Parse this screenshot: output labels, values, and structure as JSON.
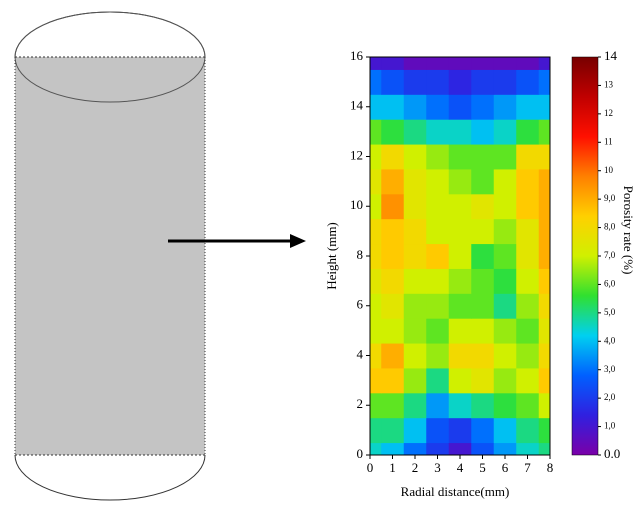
{
  "chart_data": {
    "type": "contour",
    "xlabel": "Radial distance(mm)",
    "ylabel": "Height (mm)",
    "colorbar_label": "Porosity rate (%)",
    "x": [
      0,
      1,
      2,
      3,
      4,
      5,
      6,
      7,
      8
    ],
    "y": [
      0,
      1,
      2,
      3,
      4,
      5,
      6,
      7,
      8,
      9,
      10,
      11,
      12,
      13,
      14,
      15,
      16
    ],
    "z": [
      [
        4.5,
        4,
        3,
        2,
        1,
        2.5,
        3.5,
        4.5,
        5
      ],
      [
        5,
        5,
        4,
        2.5,
        2,
        3,
        4,
        5,
        5.5
      ],
      [
        6,
        6,
        5,
        3.5,
        4.5,
        5,
        5.5,
        6,
        7
      ],
      [
        8.5,
        8.5,
        6.5,
        5,
        7,
        7.5,
        6.5,
        7,
        8.5
      ],
      [
        8,
        9,
        7,
        6.5,
        8,
        8,
        7,
        6.5,
        8
      ],
      [
        7,
        7,
        6.5,
        6,
        7,
        7,
        6.5,
        6,
        7.5
      ],
      [
        7,
        7.5,
        6.5,
        6.5,
        6,
        6,
        5,
        6.5,
        8
      ],
      [
        7.5,
        8,
        7,
        7,
        6.5,
        6,
        5.5,
        7,
        8.5
      ],
      [
        8,
        8.5,
        8,
        8.5,
        7,
        5.5,
        6,
        7.5,
        9
      ],
      [
        8,
        8.5,
        8,
        7,
        7,
        7,
        6.5,
        7.5,
        9
      ],
      [
        7,
        9.5,
        7.5,
        7,
        7,
        7.5,
        7,
        8.5,
        9
      ],
      [
        7.5,
        9,
        7.5,
        7,
        6.5,
        6,
        7,
        8.5,
        9
      ],
      [
        7,
        8,
        7,
        6.5,
        6,
        6,
        6,
        8,
        8
      ],
      [
        6,
        5.5,
        5,
        4.5,
        4.5,
        4,
        4.5,
        5.5,
        6
      ],
      [
        4,
        4,
        3.5,
        3,
        2.5,
        3,
        3.5,
        4,
        4
      ],
      [
        3,
        2.5,
        2,
        2,
        1.5,
        2,
        2,
        2.5,
        3
      ],
      [
        1,
        1,
        0.5,
        0.5,
        0.5,
        0.5,
        0.5,
        0.5,
        1
      ]
    ],
    "xlim": [
      0,
      8
    ],
    "ylim": [
      0,
      16
    ],
    "zlim": [
      0,
      14
    ],
    "xticks": [
      0,
      1,
      2,
      3,
      4,
      5,
      6,
      7,
      8
    ],
    "yticks": [
      0,
      2,
      4,
      6,
      8,
      10,
      12,
      14,
      16
    ],
    "zticks": [
      {
        "value": 0,
        "label": "0.0"
      },
      {
        "value": 1,
        "label": "1,0"
      },
      {
        "value": 2,
        "label": "2,0"
      },
      {
        "value": 3,
        "label": "3,0"
      },
      {
        "value": 4,
        "label": "4,0"
      },
      {
        "value": 5,
        "label": "5,0"
      },
      {
        "value": 6,
        "label": "6,0"
      },
      {
        "value": 7,
        "label": "7,0"
      },
      {
        "value": 8,
        "label": "8,0"
      },
      {
        "value": 9,
        "label": "9,0"
      },
      10,
      11,
      12,
      13,
      14
    ],
    "colormap": [
      "#7a00a8",
      "#3020e0",
      "#0060ff",
      "#00d0f0",
      "#30e030",
      "#d0f000",
      "#ffd000",
      "#ff8000",
      "#ff1000",
      "#c00000",
      "#780000"
    ]
  }
}
